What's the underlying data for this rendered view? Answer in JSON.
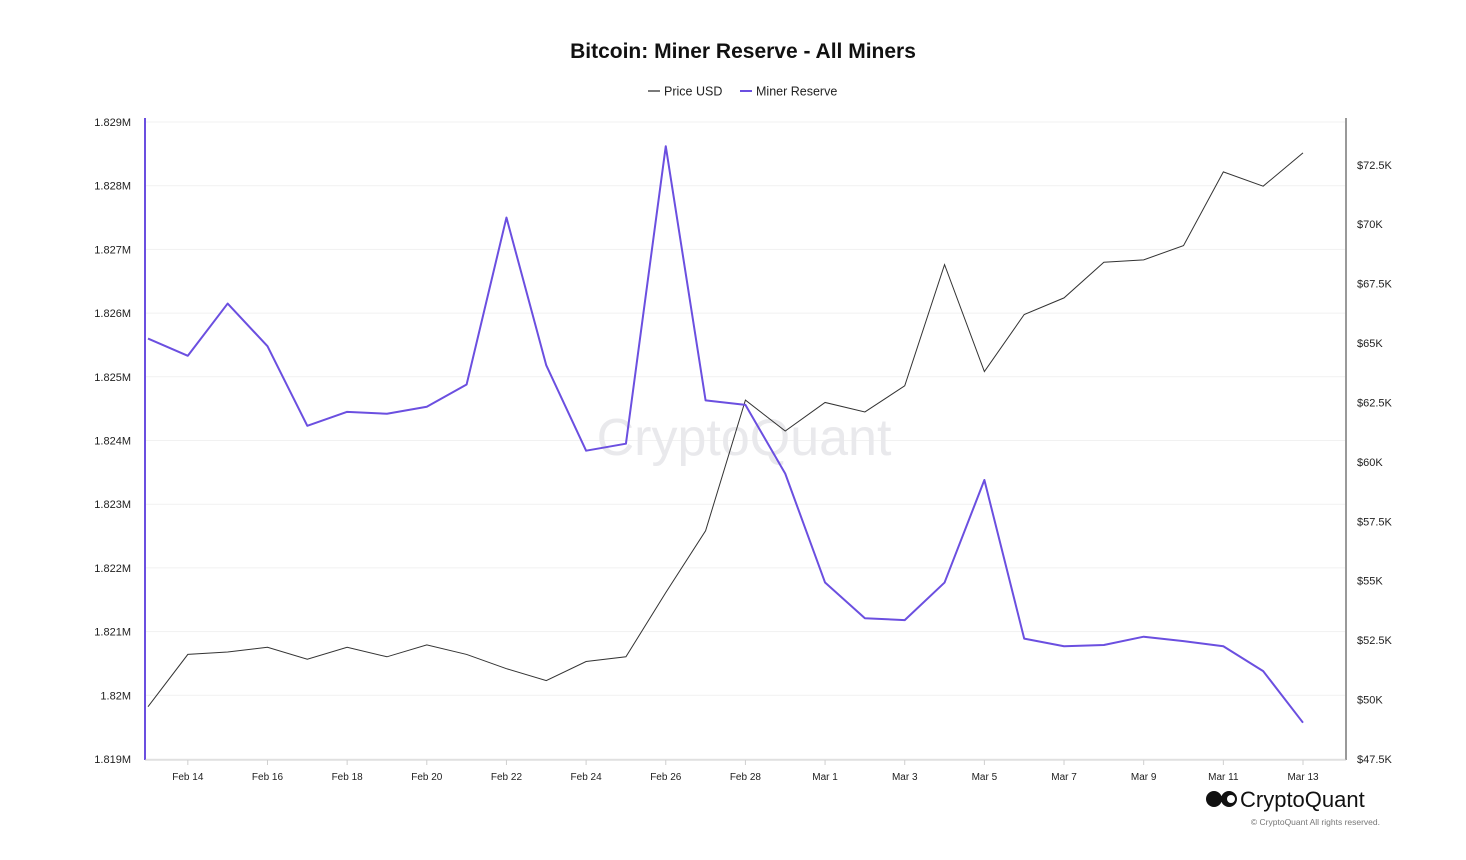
{
  "chart_data": {
    "type": "line",
    "title": "Bitcoin: Miner Reserve - All Miners",
    "x": [
      "Feb 13",
      "Feb 14",
      "Feb 15",
      "Feb 16",
      "Feb 17",
      "Feb 18",
      "Feb 19",
      "Feb 20",
      "Feb 21",
      "Feb 22",
      "Feb 23",
      "Feb 24",
      "Feb 25",
      "Feb 26",
      "Feb 27",
      "Feb 28",
      "Feb 29",
      "Mar 1",
      "Mar 2",
      "Mar 3",
      "Mar 4",
      "Mar 5",
      "Mar 6",
      "Mar 7",
      "Mar 8",
      "Mar 9",
      "Mar 10",
      "Mar 11",
      "Mar 12",
      "Mar 13"
    ],
    "x_tick_labels": [
      "Feb 14",
      "Feb 16",
      "Feb 18",
      "Feb 20",
      "Feb 22",
      "Feb 24",
      "Feb 26",
      "Feb 28",
      "Mar 1",
      "Mar 3",
      "Mar 5",
      "Mar 7",
      "Mar 9",
      "Mar 11",
      "Mar 13"
    ],
    "series": [
      {
        "name": "Price USD",
        "axis": "right",
        "color": "#333333",
        "values": [
          49700,
          51900,
          52000,
          52200,
          51700,
          52200,
          51800,
          52300,
          51900,
          51300,
          50800,
          51600,
          51800,
          54500,
          57100,
          62600,
          61300,
          62500,
          62100,
          63200,
          68300,
          63800,
          66200,
          66900,
          68400,
          68500,
          69100,
          72200,
          71600,
          73000
        ]
      },
      {
        "name": "Miner Reserve",
        "axis": "left",
        "color": "#6b4fe0",
        "values": [
          1825600,
          1825330,
          1826150,
          1825480,
          1824230,
          1824450,
          1824420,
          1824530,
          1824880,
          1827500,
          1825180,
          1823840,
          1823950,
          1828620,
          1824630,
          1824560,
          1823480,
          1821770,
          1821210,
          1821180,
          1821770,
          1823380,
          1820890,
          1820770,
          1820790,
          1820920,
          1820850,
          1820770,
          1820380,
          1819570
        ]
      }
    ],
    "y_left": {
      "ylim": [
        1819000,
        1829000
      ],
      "ticks": [
        "1.819M",
        "1.82M",
        "1.821M",
        "1.822M",
        "1.823M",
        "1.824M",
        "1.825M",
        "1.826M",
        "1.827M",
        "1.828M",
        "1.829M"
      ]
    },
    "y_right": {
      "ylim": [
        47500,
        74300
      ],
      "ticks": [
        "$47.5K",
        "$50K",
        "$52.5K",
        "$55K",
        "$57.5K",
        "$60K",
        "$62.5K",
        "$65K",
        "$67.5K",
        "$70K",
        "$72.5K"
      ]
    },
    "legend": {
      "placement": "top-center",
      "items": [
        "Price USD",
        "Miner Reserve"
      ]
    },
    "grid": true
  },
  "watermark": "CryptoQuant",
  "brand": {
    "name": "CryptoQuant",
    "copyright": "© CryptoQuant All rights reserved."
  }
}
